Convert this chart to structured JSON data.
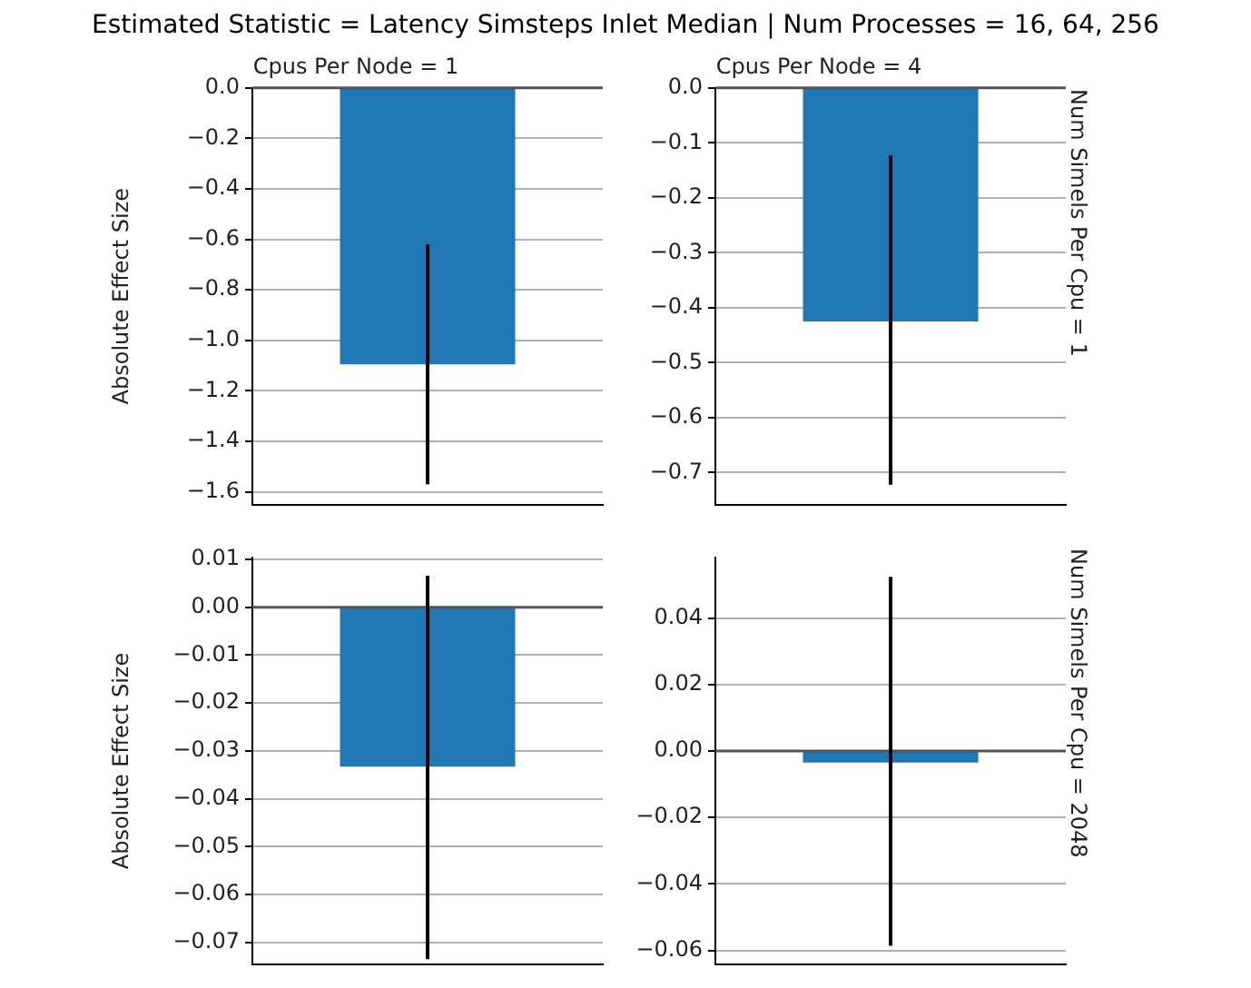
{
  "chart_data": [
    {
      "type": "bar",
      "title": "Cpus Per Node = 1",
      "ylabel": "Absolute Effect Size",
      "annotations": [
        "Estimated Statistic = Latency Simsteps Inlet Median | Num Processes = 16, 64, 256"
      ],
      "categories": [
        null
      ],
      "values": [
        -1.095
      ],
      "errors": [
        [
          -1.57,
          -0.62
        ]
      ],
      "color": "#1f77b4",
      "ylim": [
        -1.65,
        0
      ],
      "yticks": [
        {
          "value": 0,
          "label": "0.0"
        },
        {
          "value": -0.2,
          "label": "−0.2"
        },
        {
          "value": -0.4,
          "label": "−0.4"
        },
        {
          "value": -0.6,
          "label": "−0.6"
        },
        {
          "value": -0.8,
          "label": "−0.8"
        },
        {
          "value": -1.0,
          "label": "−1.0"
        },
        {
          "value": -1.2,
          "label": "−1.2"
        },
        {
          "value": -1.4,
          "label": "−1.4"
        },
        {
          "value": -1.6,
          "label": "−1.6"
        }
      ],
      "grid": "y",
      "ref_lines": [
        {
          "axis": "y",
          "value": 0,
          "color": "#555555"
        }
      ]
    },
    {
      "type": "bar",
      "title": "Cpus Per Node = 4",
      "annotations": [
        "Num Simels Per Cpu = 1"
      ],
      "categories": [
        null
      ],
      "values": [
        -0.425
      ],
      "errors": [
        [
          -0.722,
          -0.123
        ]
      ],
      "color": "#1f77b4",
      "ylim": [
        -0.758,
        0
      ],
      "yticks": [
        {
          "value": 0,
          "label": "0.0"
        },
        {
          "value": -0.1,
          "label": "−0.1"
        },
        {
          "value": -0.2,
          "label": "−0.2"
        },
        {
          "value": -0.3,
          "label": "−0.3"
        },
        {
          "value": -0.4,
          "label": "−0.4"
        },
        {
          "value": -0.5,
          "label": "−0.5"
        },
        {
          "value": -0.6,
          "label": "−0.6"
        },
        {
          "value": -0.7,
          "label": "−0.7"
        }
      ],
      "grid": "y",
      "ref_lines": [
        {
          "axis": "y",
          "value": 0,
          "color": "#555555"
        }
      ]
    },
    {
      "type": "bar",
      "ylabel": "Absolute Effect Size",
      "categories": [
        null
      ],
      "values": [
        -0.0333
      ],
      "errors": [
        [
          -0.0735,
          0.0066
        ]
      ],
      "color": "#1f77b4",
      "ylim": [
        -0.0745,
        0.0103
      ],
      "yticks": [
        {
          "value": 0.01,
          "label": "0.01"
        },
        {
          "value": 0,
          "label": "0.00"
        },
        {
          "value": -0.01,
          "label": "−0.01"
        },
        {
          "value": -0.02,
          "label": "−0.02"
        },
        {
          "value": -0.03,
          "label": "−0.03"
        },
        {
          "value": -0.04,
          "label": "−0.04"
        },
        {
          "value": -0.05,
          "label": "−0.05"
        },
        {
          "value": -0.06,
          "label": "−0.06"
        },
        {
          "value": -0.07,
          "label": "−0.07"
        }
      ],
      "grid": "y",
      "ref_lines": [
        {
          "axis": "y",
          "value": 0,
          "color": "#555555"
        }
      ]
    },
    {
      "type": "bar",
      "annotations": [
        "Num Simels Per Cpu = 2048"
      ],
      "categories": [
        null
      ],
      "values": [
        -0.0035
      ],
      "errors": [
        [
          -0.0586,
          0.0524
        ]
      ],
      "color": "#1f77b4",
      "ylim": [
        -0.0641,
        0.0581
      ],
      "yticks": [
        {
          "value": 0.04,
          "label": "0.04"
        },
        {
          "value": 0.02,
          "label": "0.02"
        },
        {
          "value": 0,
          "label": "0.00"
        },
        {
          "value": -0.02,
          "label": "−0.02"
        },
        {
          "value": -0.04,
          "label": "−0.04"
        },
        {
          "value": -0.06,
          "label": "−0.06"
        }
      ],
      "grid": "y",
      "ref_lines": [
        {
          "axis": "y",
          "value": 0,
          "color": "#555555"
        }
      ]
    }
  ]
}
